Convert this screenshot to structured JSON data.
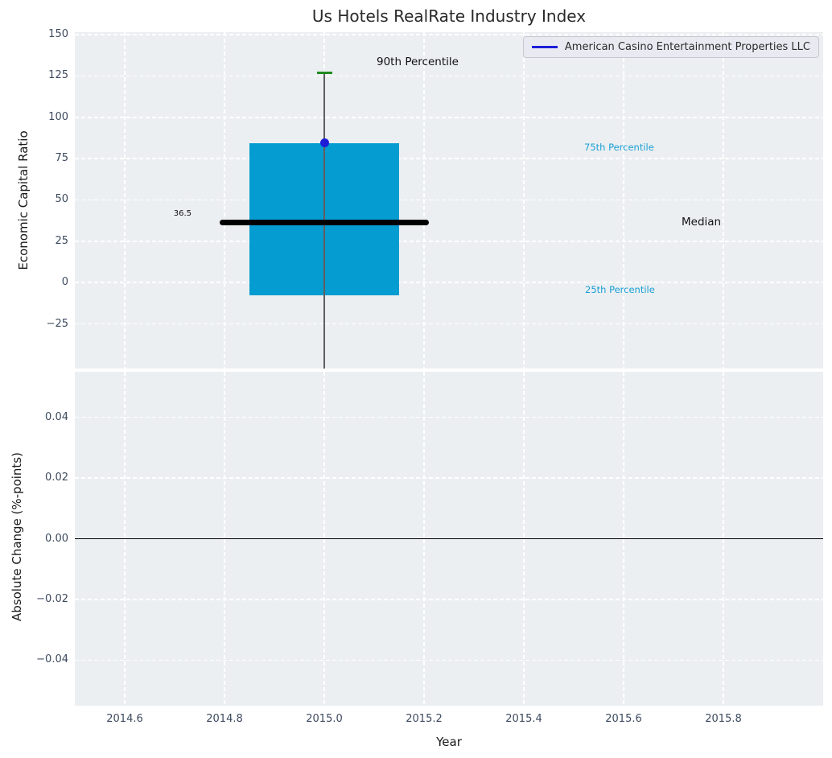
{
  "title": "Us Hotels RealRate Industry Index",
  "legend": {
    "entries": [
      {
        "label": "American Casino Entertainment Properties LLC",
        "color": "#1d1dd8"
      }
    ]
  },
  "colors": {
    "plot_bg": "#eceff1",
    "grid": "#ffffff",
    "box_fill": "#059cd1",
    "median_line": "#000000",
    "whisker": "#5f5f5f",
    "cap_90th": "#1f8b1f",
    "marker_blue": "#1d1dd8",
    "percentile_label": "#189fd6",
    "tick_label": "#3d4a5e",
    "zero_line": "#000000"
  },
  "chart_data": [
    {
      "type": "box",
      "title": "Us Hotels RealRate Industry Index",
      "ylabel": "Economic Capital Ratio",
      "xlim": [
        2014.5,
        2016.0
      ],
      "ylim": [
        -52,
        151.5
      ],
      "grid": true,
      "legend_position": "upper right",
      "yticks": {
        "values": [
          150,
          125,
          100,
          75,
          50,
          25,
          0,
          -25
        ],
        "labels": [
          "150",
          "125",
          "100",
          "75",
          "50",
          "25",
          "0",
          "−25"
        ]
      },
      "xtick_values": [
        2014.6,
        2014.8,
        2015.0,
        2015.2,
        2015.4,
        2015.6,
        2015.8
      ],
      "series": [
        {
          "name": "American Casino Entertainment Properties LLC",
          "x": 2015.0,
          "median": 36.5,
          "q1": -7.5,
          "q3": 84.4,
          "p90": 127,
          "whisker_low": null,
          "whisker_low_clipped_at_axis_bottom": true,
          "box_x_range": [
            2014.85,
            2015.15
          ],
          "median_x_range": [
            2014.79,
            2015.21
          ],
          "marker": {
            "x": 2015.0,
            "y": 84.4
          }
        }
      ],
      "annotations": [
        {
          "text": "90th Percentile"
        },
        {
          "text": "75th Percentile"
        },
        {
          "text": "Median"
        },
        {
          "text": "25th Percentile"
        },
        {
          "text": "36.5"
        }
      ]
    },
    {
      "type": "line",
      "ylabel": "Absolute Change (%-points)",
      "xlabel": "Year",
      "xlim": [
        2014.5,
        2016.0
      ],
      "ylim": [
        -0.055,
        0.055
      ],
      "grid": true,
      "zero_line": 0.0,
      "yticks": {
        "values": [
          0.04,
          0.02,
          0,
          -0.02,
          -0.04
        ],
        "labels": [
          "0.04",
          "0.02",
          "0.00",
          "−0.02",
          "−0.04"
        ]
      },
      "xticks": {
        "values": [
          2014.6,
          2014.8,
          2015.0,
          2015.2,
          2015.4,
          2015.6,
          2015.8
        ],
        "labels": [
          "2014.6",
          "2014.8",
          "2015.0",
          "2015.2",
          "2015.4",
          "2015.6",
          "2015.8"
        ]
      },
      "series": []
    }
  ]
}
